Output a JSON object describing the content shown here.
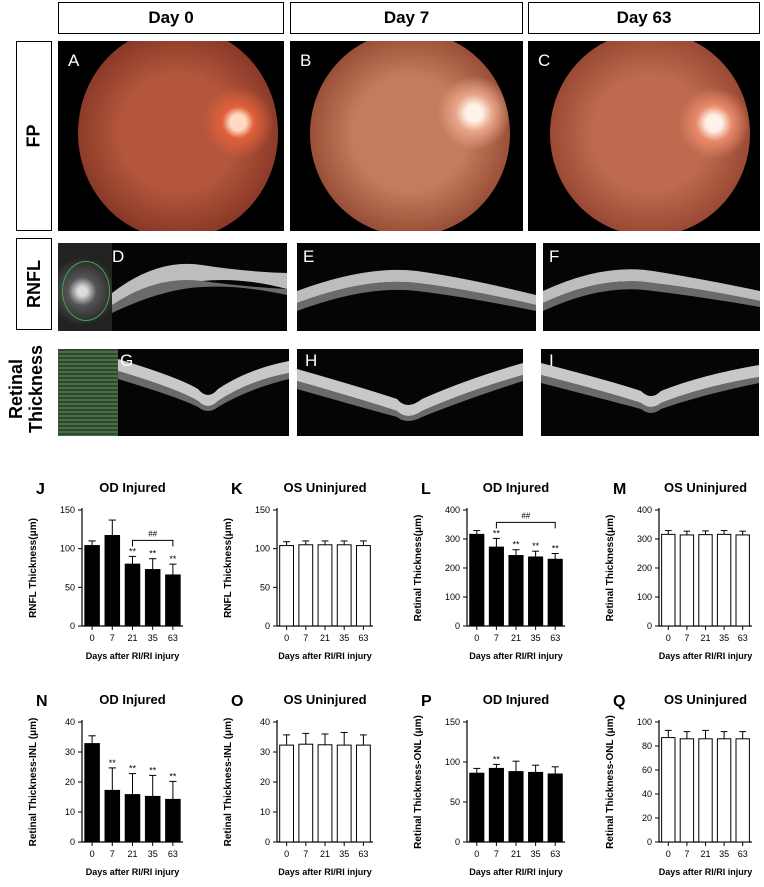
{
  "columns": [
    "Day 0",
    "Day 7",
    "Day 63"
  ],
  "rows": [
    "FP",
    "RNFL",
    "Retinal Thickness"
  ],
  "image_panels": {
    "fp": [
      "A",
      "B",
      "C"
    ],
    "rnfl": [
      "D",
      "E",
      "F"
    ],
    "retinal": [
      "G",
      "H",
      "I"
    ]
  },
  "chart_data": [
    {
      "panel": "J",
      "type": "bar",
      "title": "OD Injured",
      "ylabel": "RNFL Thickness(μm)",
      "xlabel": "Days after RI/RI injury",
      "categories": [
        "0",
        "7",
        "21",
        "35",
        "63"
      ],
      "values": [
        104,
        117,
        80,
        73,
        66
      ],
      "errors": [
        6,
        20,
        10,
        14,
        14
      ],
      "ylim": [
        0,
        150
      ],
      "yticks": [
        0,
        50,
        100,
        150
      ],
      "fill": "#000000",
      "marks": [
        "",
        "",
        "**",
        "**",
        "**"
      ],
      "bracket": {
        "from": 2,
        "to": 4,
        "label": "##"
      }
    },
    {
      "panel": "K",
      "type": "bar",
      "title": "OS Uninjured",
      "ylabel": "RNFL Thickness(μm)",
      "xlabel": "Days after RI/RI injury",
      "categories": [
        "0",
        "7",
        "21",
        "35",
        "63"
      ],
      "values": [
        104,
        105,
        105,
        105,
        104
      ],
      "errors": [
        5,
        5,
        5,
        5,
        6
      ],
      "ylim": [
        0,
        150
      ],
      "yticks": [
        0,
        50,
        100,
        150
      ],
      "fill": "#ffffff",
      "marks": [
        "",
        "",
        "",
        "",
        ""
      ]
    },
    {
      "panel": "L",
      "type": "bar",
      "title": "OD Injured",
      "ylabel": "Retinal Thickness(μm)",
      "xlabel": "Days after RI/RI injury",
      "categories": [
        "0",
        "7",
        "21",
        "35",
        "63"
      ],
      "values": [
        316,
        272,
        243,
        238,
        230
      ],
      "errors": [
        13,
        30,
        20,
        20,
        20
      ],
      "ylim": [
        0,
        400
      ],
      "yticks": [
        0,
        100,
        200,
        300,
        400
      ],
      "fill": "#000000",
      "marks": [
        "",
        "**",
        "**",
        "**",
        "**"
      ],
      "bracket": {
        "from": 1,
        "to": 4,
        "label": "##"
      }
    },
    {
      "panel": "M",
      "type": "bar",
      "title": "OS Uninjured",
      "ylabel": "Retinal Thickness(μm)",
      "xlabel": "Days after RI/RI injury",
      "categories": [
        "0",
        "7",
        "21",
        "35",
        "63"
      ],
      "values": [
        316,
        314,
        315,
        316,
        314
      ],
      "errors": [
        13,
        13,
        13,
        13,
        13
      ],
      "ylim": [
        0,
        400
      ],
      "yticks": [
        0,
        100,
        200,
        300,
        400
      ],
      "fill": "#ffffff",
      "marks": [
        "",
        "",
        "",
        "",
        ""
      ]
    },
    {
      "panel": "N",
      "type": "bar",
      "title": "OD Injured",
      "ylabel": "Retinal Thickness-INL (μm)",
      "xlabel": "Days after RI/RI injury",
      "categories": [
        "0",
        "7",
        "21",
        "35",
        "63"
      ],
      "values": [
        32.8,
        17.2,
        15.8,
        15.2,
        14.2
      ],
      "errors": [
        2.6,
        7.5,
        7,
        7,
        6
      ],
      "ylim": [
        0,
        40
      ],
      "yticks": [
        0,
        10,
        20,
        30,
        40
      ],
      "fill": "#000000",
      "marks": [
        "",
        "**",
        "**",
        "**",
        "**"
      ]
    },
    {
      "panel": "O",
      "type": "bar",
      "title": "OS Uninjured",
      "ylabel": "Retinal Thickness-INL (μm)",
      "xlabel": "Days after RI/RI injury",
      "categories": [
        "0",
        "7",
        "21",
        "35",
        "63"
      ],
      "values": [
        32.3,
        32.6,
        32.4,
        32.3,
        32.3
      ],
      "errors": [
        3.4,
        3.6,
        3.6,
        4.2,
        3.4
      ],
      "ylim": [
        0,
        40
      ],
      "yticks": [
        0,
        10,
        20,
        30,
        40
      ],
      "fill": "#ffffff",
      "marks": [
        "",
        "",
        "",
        "",
        ""
      ]
    },
    {
      "panel": "P",
      "type": "bar",
      "title": "OD Injured",
      "ylabel": "Retinal Thickness-ONL (μm)",
      "xlabel": "Days after RI/RI injury",
      "categories": [
        "0",
        "7",
        "21",
        "35",
        "63"
      ],
      "values": [
        86,
        92,
        88,
        87,
        85
      ],
      "errors": [
        6,
        5,
        13,
        9,
        9
      ],
      "ylim": [
        0,
        150
      ],
      "yticks": [
        0,
        50,
        100,
        150
      ],
      "fill": "#000000",
      "marks": [
        "",
        "**",
        "",
        "",
        ""
      ]
    },
    {
      "panel": "Q",
      "type": "bar",
      "title": "OS Uninjured",
      "ylabel": "Retinal Thickness-ONL (μm)",
      "xlabel": "Days after RI/RI injury",
      "categories": [
        "0",
        "7",
        "21",
        "35",
        "63"
      ],
      "values": [
        87,
        86,
        86,
        86,
        86
      ],
      "errors": [
        6,
        6,
        7,
        6,
        6
      ],
      "ylim": [
        0,
        100
      ],
      "yticks": [
        0,
        20,
        40,
        60,
        80,
        100
      ],
      "fill": "#ffffff",
      "marks": [
        "",
        "",
        "",
        "",
        ""
      ]
    }
  ]
}
